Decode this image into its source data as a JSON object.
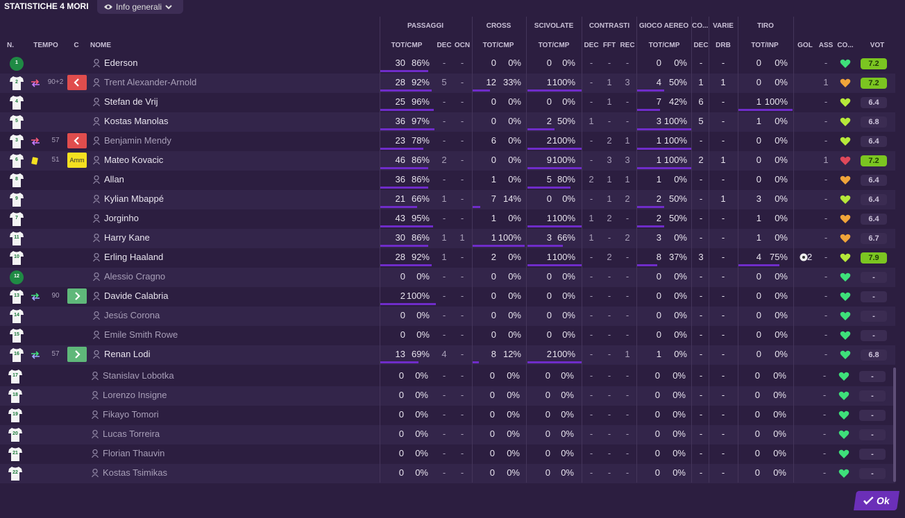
{
  "title": "STATISTICHE 4 MORI",
  "view_selector": {
    "icon": "eye-icon",
    "label": "Info generali"
  },
  "groups": [
    "PASSAGGI",
    "CROSS",
    "SCIVOLATE",
    "CONTRASTI",
    "GIOCO AEREO",
    "CO...",
    "VARIE",
    "TIRO"
  ],
  "headers": {
    "n": "N.",
    "tempo": "TEMPO",
    "c": "C",
    "nome": "NOME",
    "pass_tot": "TOT/CMP",
    "pass_dec": "DEC",
    "pass_ocn": "OCN",
    "cross_tot": "TOT/CMP",
    "scivolate_tot": "TOT/CMP",
    "contr_dec": "DEC",
    "contr_fft": "FFT",
    "contr_rec": "REC",
    "aereo_tot": "TOT/CMP",
    "co_dec": "DEC",
    "varie_drb": "DRB",
    "tiro_tot": "TOT/INP",
    "gol": "GOL",
    "ass": "ASS",
    "co": "CO...",
    "vot": "VOT"
  },
  "players": [
    {
      "num": "1",
      "gk": true,
      "name": "Ederson",
      "played": true,
      "ps": [
        "30",
        "86%"
      ],
      "pb": 0.86,
      "pdec": "-",
      "pocn": "-",
      "cr": [
        "0",
        "0%"
      ],
      "crb": 0,
      "sc": [
        "0",
        "0%"
      ],
      "scb": 0,
      "cdec": "-",
      "cfft": "-",
      "crec": "-",
      "ae": [
        "0",
        "0%"
      ],
      "aeb": 0,
      "codec": "-",
      "drb": "-",
      "ti": [
        "0",
        "0%"
      ],
      "tib": 0,
      "gol": "",
      "ass": "-",
      "heart": "green",
      "vot": "7.2",
      "votg": true
    },
    {
      "num": "2",
      "name": "Trent Alexander-Arnold",
      "played": true,
      "dimname": true,
      "sub": "out",
      "time": "90+2",
      "card": "out",
      "ps": [
        "28",
        "92%"
      ],
      "pb": 0.92,
      "pdec": "5",
      "pocn": "-",
      "cr": [
        "12",
        "33%"
      ],
      "crb": 0.33,
      "sc": [
        "1",
        "100%"
      ],
      "scb": 1,
      "cdec": "-",
      "cfft": "1",
      "crec": "3",
      "ae": [
        "4",
        "50%"
      ],
      "aeb": 0.5,
      "codec": "1",
      "drb": "1",
      "ti": [
        "0",
        "0%"
      ],
      "tib": 0,
      "gol": "",
      "ass": "1",
      "heart": "orange",
      "vot": "7.2",
      "votg": true
    },
    {
      "num": "4",
      "name": "Stefan de Vrij",
      "played": true,
      "ps": [
        "25",
        "96%"
      ],
      "pb": 0.96,
      "pdec": "-",
      "pocn": "-",
      "cr": [
        "0",
        "0%"
      ],
      "crb": 0,
      "sc": [
        "0",
        "0%"
      ],
      "scb": 0,
      "cdec": "-",
      "cfft": "1",
      "crec": "-",
      "ae": [
        "7",
        "42%"
      ],
      "aeb": 0.42,
      "codec": "6",
      "drb": "-",
      "ti": [
        "1",
        "100%"
      ],
      "tib": 1,
      "gol": "",
      "ass": "-",
      "heart": "lime",
      "vot": "6.4",
      "votg": false
    },
    {
      "num": "5",
      "name": "Kostas Manolas",
      "played": true,
      "ps": [
        "36",
        "97%"
      ],
      "pb": 0.97,
      "pdec": "-",
      "pocn": "-",
      "cr": [
        "0",
        "0%"
      ],
      "crb": 0,
      "sc": [
        "2",
        "50%"
      ],
      "scb": 0.5,
      "cdec": "1",
      "cfft": "-",
      "crec": "-",
      "ae": [
        "3",
        "100%"
      ],
      "aeb": 1,
      "codec": "5",
      "drb": "-",
      "ti": [
        "1",
        "0%"
      ],
      "tib": 0,
      "gol": "",
      "ass": "-",
      "heart": "lime",
      "vot": "6.8",
      "votg": false
    },
    {
      "num": "3",
      "name": "Benjamin Mendy",
      "played": true,
      "dimname": true,
      "sub": "out",
      "time": "57",
      "card": "out",
      "ps": [
        "23",
        "78%"
      ],
      "pb": 0.78,
      "pdec": "-",
      "pocn": "-",
      "cr": [
        "6",
        "0%"
      ],
      "crb": 0,
      "sc": [
        "2",
        "100%"
      ],
      "scb": 1,
      "cdec": "-",
      "cfft": "2",
      "crec": "1",
      "ae": [
        "1",
        "100%"
      ],
      "aeb": 1,
      "codec": "-",
      "drb": "-",
      "ti": [
        "0",
        "0%"
      ],
      "tib": 0,
      "gol": "",
      "ass": "-",
      "heart": "lime",
      "vot": "6.4",
      "votg": false
    },
    {
      "num": "6",
      "name": "Mateo Kovacic",
      "played": true,
      "yellow": true,
      "time": "51",
      "card": "amm",
      "card_label": "Amm",
      "ps": [
        "46",
        "86%"
      ],
      "pb": 0.86,
      "pdec": "2",
      "pocn": "-",
      "cr": [
        "0",
        "0%"
      ],
      "crb": 0,
      "sc": [
        "9",
        "100%"
      ],
      "scb": 1,
      "cdec": "-",
      "cfft": "3",
      "crec": "3",
      "ae": [
        "1",
        "100%"
      ],
      "aeb": 1,
      "codec": "2",
      "drb": "1",
      "ti": [
        "0",
        "0%"
      ],
      "tib": 0,
      "gol": "",
      "ass": "1",
      "heart": "red",
      "vot": "7.2",
      "votg": true
    },
    {
      "num": "8",
      "name": "Allan",
      "played": true,
      "ps": [
        "36",
        "86%"
      ],
      "pb": 0.86,
      "pdec": "-",
      "pocn": "-",
      "cr": [
        "1",
        "0%"
      ],
      "crb": 0,
      "sc": [
        "5",
        "80%"
      ],
      "scb": 0.8,
      "cdec": "2",
      "cfft": "1",
      "crec": "1",
      "ae": [
        "1",
        "0%"
      ],
      "aeb": 0,
      "codec": "-",
      "drb": "-",
      "ti": [
        "0",
        "0%"
      ],
      "tib": 0,
      "gol": "",
      "ass": "-",
      "heart": "orange",
      "vot": "6.4",
      "votg": false
    },
    {
      "num": "9",
      "name": "Kylian Mbappé",
      "played": true,
      "ps": [
        "21",
        "66%"
      ],
      "pb": 0.66,
      "pdec": "1",
      "pocn": "-",
      "cr": [
        "7",
        "14%"
      ],
      "crb": 0.14,
      "sc": [
        "0",
        "0%"
      ],
      "scb": 0,
      "cdec": "-",
      "cfft": "1",
      "crec": "2",
      "ae": [
        "2",
        "50%"
      ],
      "aeb": 0.5,
      "codec": "-",
      "drb": "1",
      "ti": [
        "3",
        "0%"
      ],
      "tib": 0,
      "gol": "",
      "ass": "-",
      "heart": "lime",
      "vot": "6.4",
      "votg": false
    },
    {
      "num": "7",
      "name": "Jorginho",
      "played": true,
      "ps": [
        "43",
        "95%"
      ],
      "pb": 0.95,
      "pdec": "-",
      "pocn": "-",
      "cr": [
        "1",
        "0%"
      ],
      "crb": 0,
      "sc": [
        "1",
        "100%"
      ],
      "scb": 1,
      "cdec": "1",
      "cfft": "2",
      "crec": "-",
      "ae": [
        "2",
        "50%"
      ],
      "aeb": 0.5,
      "codec": "-",
      "drb": "-",
      "ti": [
        "1",
        "0%"
      ],
      "tib": 0,
      "gol": "",
      "ass": "-",
      "heart": "orange",
      "vot": "6.4",
      "votg": false
    },
    {
      "num": "11",
      "name": "Harry Kane",
      "played": true,
      "ps": [
        "30",
        "86%"
      ],
      "pb": 0.86,
      "pdec": "1",
      "pocn": "1",
      "cr": [
        "1",
        "100%"
      ],
      "crb": 1,
      "sc": [
        "3",
        "66%"
      ],
      "scb": 0.66,
      "cdec": "1",
      "cfft": "-",
      "crec": "2",
      "ae": [
        "3",
        "0%"
      ],
      "aeb": 0,
      "codec": "-",
      "drb": "-",
      "ti": [
        "1",
        "0%"
      ],
      "tib": 0,
      "gol": "",
      "ass": "-",
      "heart": "orange",
      "vot": "6.7",
      "votg": false
    },
    {
      "num": "10",
      "name": "Erling Haaland",
      "played": true,
      "ps": [
        "28",
        "92%"
      ],
      "pb": 0.92,
      "pdec": "1",
      "pocn": "-",
      "cr": [
        "2",
        "0%"
      ],
      "crb": 0,
      "sc": [
        "1",
        "100%"
      ],
      "scb": 1,
      "cdec": "-",
      "cfft": "2",
      "crec": "-",
      "ae": [
        "8",
        "37%"
      ],
      "aeb": 0.37,
      "codec": "3",
      "drb": "-",
      "ti": [
        "4",
        "75%"
      ],
      "tib": 0.75,
      "gol": "2",
      "ass": "-",
      "heart": "lime",
      "vot": "7.9",
      "votg": true
    },
    {
      "num": "12",
      "gk": true,
      "name": "Alessio Cragno",
      "played": false,
      "dimname": true,
      "ps": [
        "0",
        "0%"
      ],
      "pb": 0,
      "pdec": "-",
      "pocn": "-",
      "cr": [
        "0",
        "0%"
      ],
      "crb": 0,
      "sc": [
        "0",
        "0%"
      ],
      "scb": 0,
      "cdec": "-",
      "cfft": "-",
      "crec": "-",
      "ae": [
        "0",
        "0%"
      ],
      "aeb": 0,
      "codec": "-",
      "drb": "-",
      "ti": [
        "0",
        "0%"
      ],
      "tib": 0,
      "gol": "",
      "ass": "-",
      "heart": "green",
      "vot": "-",
      "votg": false
    },
    {
      "num": "13",
      "name": "Davide Calabria",
      "played": true,
      "sub": "in",
      "time": "90",
      "card": "in",
      "ps": [
        "2",
        "100%"
      ],
      "pb": 1,
      "pdec": "-",
      "pocn": "-",
      "cr": [
        "0",
        "0%"
      ],
      "crb": 0,
      "sc": [
        "0",
        "0%"
      ],
      "scb": 0,
      "cdec": "-",
      "cfft": "-",
      "crec": "-",
      "ae": [
        "0",
        "0%"
      ],
      "aeb": 0,
      "codec": "-",
      "drb": "-",
      "ti": [
        "0",
        "0%"
      ],
      "tib": 0,
      "gol": "",
      "ass": "-",
      "heart": "green",
      "vot": "-",
      "votg": false
    },
    {
      "num": "14",
      "name": "Jesús Corona",
      "played": false,
      "dimname": true,
      "ps": [
        "0",
        "0%"
      ],
      "pb": 0,
      "pdec": "-",
      "pocn": "-",
      "cr": [
        "0",
        "0%"
      ],
      "crb": 0,
      "sc": [
        "0",
        "0%"
      ],
      "scb": 0,
      "cdec": "-",
      "cfft": "-",
      "crec": "-",
      "ae": [
        "0",
        "0%"
      ],
      "aeb": 0,
      "codec": "-",
      "drb": "-",
      "ti": [
        "0",
        "0%"
      ],
      "tib": 0,
      "gol": "",
      "ass": "-",
      "heart": "green",
      "vot": "-",
      "votg": false
    },
    {
      "num": "15",
      "name": "Emile Smith Rowe",
      "played": false,
      "dimname": true,
      "ps": [
        "0",
        "0%"
      ],
      "pb": 0,
      "pdec": "-",
      "pocn": "-",
      "cr": [
        "0",
        "0%"
      ],
      "crb": 0,
      "sc": [
        "0",
        "0%"
      ],
      "scb": 0,
      "cdec": "-",
      "cfft": "-",
      "crec": "-",
      "ae": [
        "0",
        "0%"
      ],
      "aeb": 0,
      "codec": "-",
      "drb": "-",
      "ti": [
        "0",
        "0%"
      ],
      "tib": 0,
      "gol": "",
      "ass": "-",
      "heart": "green",
      "vot": "-",
      "votg": false
    },
    {
      "num": "16",
      "name": "Renan Lodi",
      "played": true,
      "sub": "in",
      "time": "57",
      "card": "in",
      "ps": [
        "13",
        "69%"
      ],
      "pb": 0.69,
      "pdec": "4",
      "pocn": "-",
      "cr": [
        "8",
        "12%"
      ],
      "crb": 0.12,
      "sc": [
        "2",
        "100%"
      ],
      "scb": 1,
      "cdec": "-",
      "cfft": "-",
      "crec": "1",
      "ae": [
        "1",
        "0%"
      ],
      "aeb": 0,
      "codec": "-",
      "drb": "-",
      "ti": [
        "0",
        "0%"
      ],
      "tib": 0,
      "gol": "",
      "ass": "-",
      "heart": "green",
      "vot": "6.8",
      "votg": false
    },
    {
      "num": "17",
      "name": "Stanislav Lobotka",
      "played": false,
      "dimname": true,
      "ps": [
        "0",
        "0%"
      ],
      "pb": 0,
      "pdec": "-",
      "pocn": "-",
      "cr": [
        "0",
        "0%"
      ],
      "crb": 0,
      "sc": [
        "0",
        "0%"
      ],
      "scb": 0,
      "cdec": "-",
      "cfft": "-",
      "crec": "-",
      "ae": [
        "0",
        "0%"
      ],
      "aeb": 0,
      "codec": "-",
      "drb": "-",
      "ti": [
        "0",
        "0%"
      ],
      "tib": 0,
      "gol": "",
      "ass": "-",
      "heart": "green",
      "vot": "-",
      "votg": false
    },
    {
      "num": "18",
      "name": "Lorenzo Insigne",
      "played": false,
      "dimname": true,
      "ps": [
        "0",
        "0%"
      ],
      "pb": 0,
      "pdec": "-",
      "pocn": "-",
      "cr": [
        "0",
        "0%"
      ],
      "crb": 0,
      "sc": [
        "0",
        "0%"
      ],
      "scb": 0,
      "cdec": "-",
      "cfft": "-",
      "crec": "-",
      "ae": [
        "0",
        "0%"
      ],
      "aeb": 0,
      "codec": "-",
      "drb": "-",
      "ti": [
        "0",
        "0%"
      ],
      "tib": 0,
      "gol": "",
      "ass": "-",
      "heart": "green",
      "vot": "-",
      "votg": false
    },
    {
      "num": "19",
      "name": "Fikayo Tomori",
      "played": false,
      "dimname": true,
      "ps": [
        "0",
        "0%"
      ],
      "pb": 0,
      "pdec": "-",
      "pocn": "-",
      "cr": [
        "0",
        "0%"
      ],
      "crb": 0,
      "sc": [
        "0",
        "0%"
      ],
      "scb": 0,
      "cdec": "-",
      "cfft": "-",
      "crec": "-",
      "ae": [
        "0",
        "0%"
      ],
      "aeb": 0,
      "codec": "-",
      "drb": "-",
      "ti": [
        "0",
        "0%"
      ],
      "tib": 0,
      "gol": "",
      "ass": "-",
      "heart": "green",
      "vot": "-",
      "votg": false
    },
    {
      "num": "20",
      "name": "Lucas Torreira",
      "played": false,
      "dimname": true,
      "ps": [
        "0",
        "0%"
      ],
      "pb": 0,
      "pdec": "-",
      "pocn": "-",
      "cr": [
        "0",
        "0%"
      ],
      "crb": 0,
      "sc": [
        "0",
        "0%"
      ],
      "scb": 0,
      "cdec": "-",
      "cfft": "-",
      "crec": "-",
      "ae": [
        "0",
        "0%"
      ],
      "aeb": 0,
      "codec": "-",
      "drb": "-",
      "ti": [
        "0",
        "0%"
      ],
      "tib": 0,
      "gol": "",
      "ass": "-",
      "heart": "green",
      "vot": "-",
      "votg": false
    },
    {
      "num": "21",
      "name": "Florian Thauvin",
      "played": false,
      "dimname": true,
      "ps": [
        "0",
        "0%"
      ],
      "pb": 0,
      "pdec": "-",
      "pocn": "-",
      "cr": [
        "0",
        "0%"
      ],
      "crb": 0,
      "sc": [
        "0",
        "0%"
      ],
      "scb": 0,
      "cdec": "-",
      "cfft": "-",
      "crec": "-",
      "ae": [
        "0",
        "0%"
      ],
      "aeb": 0,
      "codec": "-",
      "drb": "-",
      "ti": [
        "0",
        "0%"
      ],
      "tib": 0,
      "gol": "",
      "ass": "-",
      "heart": "green",
      "vot": "-",
      "votg": false
    },
    {
      "num": "22",
      "name": "Kostas Tsimikas",
      "played": false,
      "dimname": true,
      "ps": [
        "0",
        "0%"
      ],
      "pb": 0,
      "pdec": "-",
      "pocn": "-",
      "cr": [
        "0",
        "0%"
      ],
      "crb": 0,
      "sc": [
        "0",
        "0%"
      ],
      "scb": 0,
      "cdec": "-",
      "cfft": "-",
      "crec": "-",
      "ae": [
        "0",
        "0%"
      ],
      "aeb": 0,
      "codec": "-",
      "drb": "-",
      "ti": [
        "0",
        "0%"
      ],
      "tib": 0,
      "gol": "",
      "ass": "-",
      "heart": "green",
      "vot": "-",
      "votg": false
    }
  ],
  "ok_label": "Ok",
  "colors": {
    "bg": "#2c1e40",
    "bar": "#6f2cc9",
    "rating_good": "#7bc521",
    "accent": "#6b2fb8"
  }
}
